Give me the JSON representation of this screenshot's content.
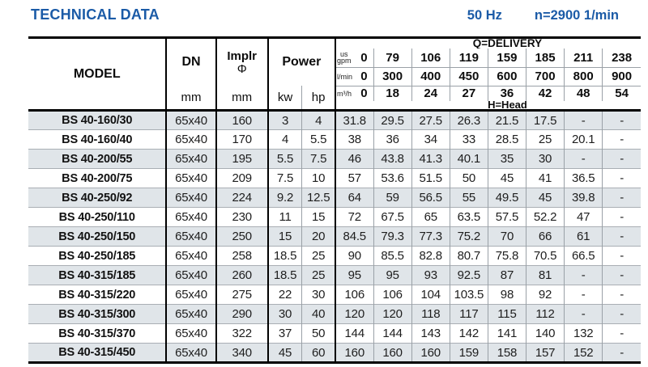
{
  "page": {
    "title": "TECHNICAL DATA",
    "frequency": "50 Hz",
    "speed": "n=2900 1/min"
  },
  "table": {
    "header": {
      "model": "MODEL",
      "dn": "DN",
      "implr_line1": "Implr",
      "implr_line2": "Φ",
      "power": "Power",
      "unit_mm_dn": "mm",
      "unit_mm_implr": "mm",
      "unit_kw": "kw",
      "unit_hp": "hp",
      "q_delivery": "Q=DELIVERY",
      "h_head": "H=Head",
      "flow_rows": [
        {
          "unit_top": "us",
          "unit": "gpm",
          "values": [
            "0",
            "79",
            "106",
            "119",
            "159",
            "185",
            "211",
            "238"
          ]
        },
        {
          "unit_top": "",
          "unit": "l/min",
          "values": [
            "0",
            "300",
            "400",
            "450",
            "600",
            "700",
            "800",
            "900"
          ]
        },
        {
          "unit_top": "",
          "unit": "m³/h",
          "values": [
            "0",
            "18",
            "24",
            "27",
            "36",
            "42",
            "48",
            "54"
          ]
        }
      ]
    },
    "rows": [
      {
        "model": "BS 40-160/30",
        "dn": "65x40",
        "implr": "160",
        "kw": "3",
        "hp": "4",
        "head": [
          "31.8",
          "29.5",
          "27.5",
          "26.3",
          "21.5",
          "17.5",
          "-",
          "-"
        ]
      },
      {
        "model": "BS 40-160/40",
        "dn": "65x40",
        "implr": "170",
        "kw": "4",
        "hp": "5.5",
        "head": [
          "38",
          "36",
          "34",
          "33",
          "28.5",
          "25",
          "20.1",
          "-"
        ]
      },
      {
        "model": "BS 40-200/55",
        "dn": "65x40",
        "implr": "195",
        "kw": "5.5",
        "hp": "7.5",
        "head": [
          "46",
          "43.8",
          "41.3",
          "40.1",
          "35",
          "30",
          "-",
          "-"
        ]
      },
      {
        "model": "BS 40-200/75",
        "dn": "65x40",
        "implr": "209",
        "kw": "7.5",
        "hp": "10",
        "head": [
          "57",
          "53.6",
          "51.5",
          "50",
          "45",
          "41",
          "36.5",
          "-"
        ]
      },
      {
        "model": "BS 40-250/92",
        "dn": "65x40",
        "implr": "224",
        "kw": "9.2",
        "hp": "12.5",
        "head": [
          "64",
          "59",
          "56.5",
          "55",
          "49.5",
          "45",
          "39.8",
          "-"
        ]
      },
      {
        "model": "BS 40-250/110",
        "dn": "65x40",
        "implr": "230",
        "kw": "11",
        "hp": "15",
        "head": [
          "72",
          "67.5",
          "65",
          "63.5",
          "57.5",
          "52.2",
          "47",
          "-"
        ]
      },
      {
        "model": "BS 40-250/150",
        "dn": "65x40",
        "implr": "250",
        "kw": "15",
        "hp": "20",
        "head": [
          "84.5",
          "79.3",
          "77.3",
          "75.2",
          "70",
          "66",
          "61",
          "-"
        ]
      },
      {
        "model": "BS 40-250/185",
        "dn": "65x40",
        "implr": "258",
        "kw": "18.5",
        "hp": "25",
        "head": [
          "90",
          "85.5",
          "82.8",
          "80.7",
          "75.8",
          "70.5",
          "66.5",
          "-"
        ]
      },
      {
        "model": "BS 40-315/185",
        "dn": "65x40",
        "implr": "260",
        "kw": "18.5",
        "hp": "25",
        "head": [
          "95",
          "95",
          "93",
          "92.5",
          "87",
          "81",
          "-",
          "-"
        ]
      },
      {
        "model": "BS 40-315/220",
        "dn": "65x40",
        "implr": "275",
        "kw": "22",
        "hp": "30",
        "head": [
          "106",
          "106",
          "104",
          "103.5",
          "98",
          "92",
          "-",
          "-"
        ]
      },
      {
        "model": "BS 40-315/300",
        "dn": "65x40",
        "implr": "290",
        "kw": "30",
        "hp": "40",
        "head": [
          "120",
          "120",
          "118",
          "117",
          "115",
          "112",
          "-",
          "-"
        ]
      },
      {
        "model": "BS 40-315/370",
        "dn": "65x40",
        "implr": "322",
        "kw": "37",
        "hp": "50",
        "head": [
          "144",
          "144",
          "143",
          "142",
          "141",
          "140",
          "132",
          "-"
        ]
      },
      {
        "model": "BS 40-315/450",
        "dn": "65x40",
        "implr": "340",
        "kw": "45",
        "hp": "60",
        "head": [
          "160",
          "160",
          "160",
          "159",
          "158",
          "157",
          "152",
          "-"
        ]
      }
    ]
  }
}
